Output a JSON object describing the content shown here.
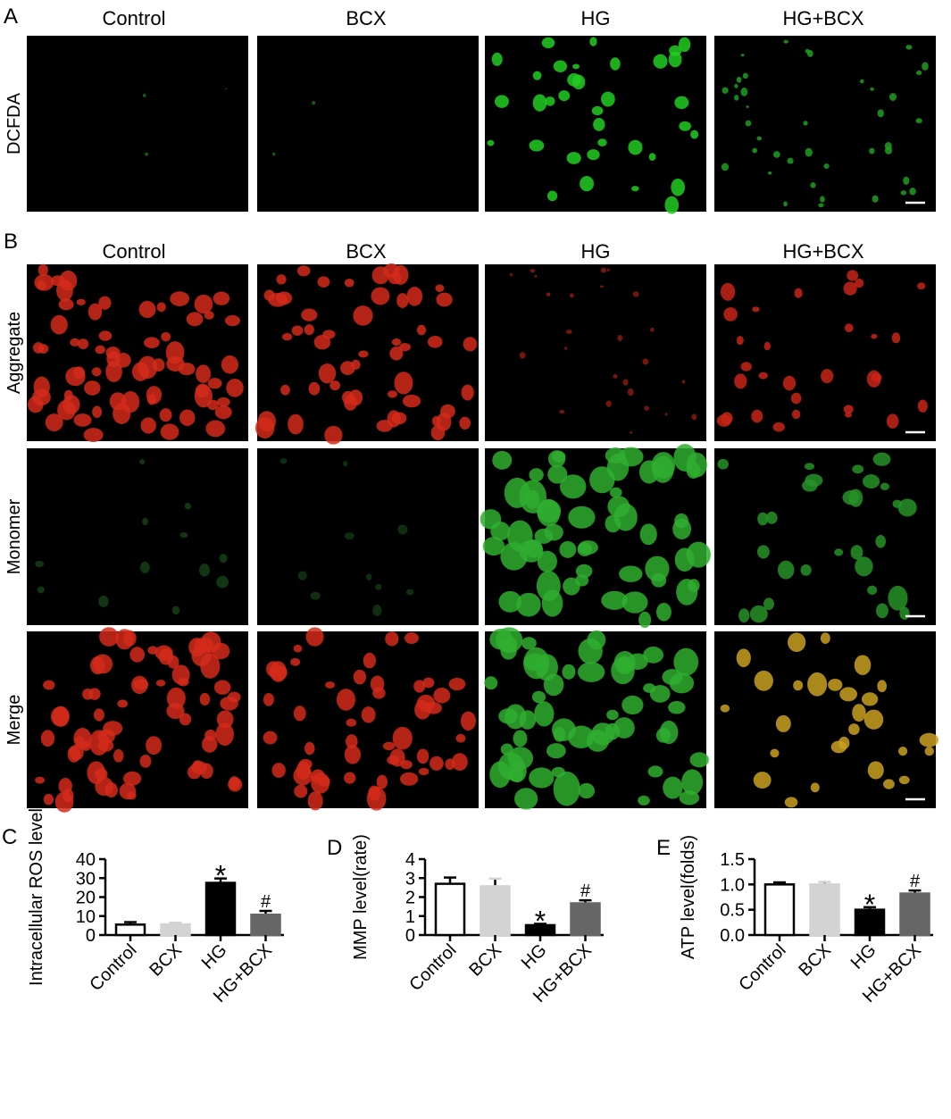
{
  "panels": {
    "A": {
      "label": "A",
      "columns": [
        "Control",
        "BCX",
        "HG",
        "HG+BCX"
      ],
      "rows": [
        "DCFDA"
      ]
    },
    "B": {
      "label": "B",
      "columns": [
        "Control",
        "BCX",
        "HG",
        "HG+BCX"
      ],
      "rows": [
        "Aggregate",
        "Monomer",
        "Merge"
      ]
    }
  },
  "chart_data": [
    {
      "type": "bar",
      "panel_label": "C",
      "y_label": "Intracellular ROS level",
      "categories": [
        "Control",
        "BCX",
        "HG",
        "HG+BCX"
      ],
      "values": [
        5.5,
        5.6,
        27.5,
        10.7
      ],
      "errors": [
        1.3,
        0.9,
        2.3,
        2.0
      ],
      "colors": [
        "#ffffff",
        "#d3d3d3",
        "#000000",
        "#666666"
      ],
      "ylim": [
        0,
        40
      ],
      "yticks": [
        0,
        10,
        20,
        30,
        40
      ],
      "annotations": [
        {
          "category": "HG",
          "text": "*"
        },
        {
          "category": "HG+BCX",
          "text": "#"
        }
      ]
    },
    {
      "type": "bar",
      "panel_label": "D",
      "y_label": "MMP level(rate)",
      "categories": [
        "Control",
        "BCX",
        "HG",
        "HG+BCX"
      ],
      "values": [
        2.7,
        2.57,
        0.52,
        1.67
      ],
      "errors": [
        0.33,
        0.4,
        0.07,
        0.16
      ],
      "colors": [
        "#ffffff",
        "#d3d3d3",
        "#000000",
        "#666666"
      ],
      "ylim": [
        0,
        4
      ],
      "yticks": [
        0,
        1,
        2,
        3,
        4
      ],
      "annotations": [
        {
          "category": "HG",
          "text": "*"
        },
        {
          "category": "HG+BCX",
          "text": "#"
        }
      ]
    },
    {
      "type": "bar",
      "panel_label": "E",
      "y_label": "ATP level(folds)",
      "categories": [
        "Control",
        "BCX",
        "HG",
        "HG+BCX"
      ],
      "values": [
        1.0,
        1.0,
        0.5,
        0.82
      ],
      "errors": [
        0.04,
        0.05,
        0.05,
        0.06
      ],
      "colors": [
        "#ffffff",
        "#d3d3d3",
        "#000000",
        "#666666"
      ],
      "ylim": [
        0,
        1.5
      ],
      "yticks": [
        {
          "value": 0,
          "label": "0.0"
        },
        {
          "value": 0.5,
          "label": "0.5"
        },
        {
          "value": 1,
          "label": "1.0"
        },
        {
          "value": 1.5,
          "label": "1.5"
        }
      ],
      "annotations": [
        {
          "category": "HG",
          "text": "*"
        },
        {
          "category": "HG+BCX",
          "text": "#"
        }
      ]
    }
  ]
}
